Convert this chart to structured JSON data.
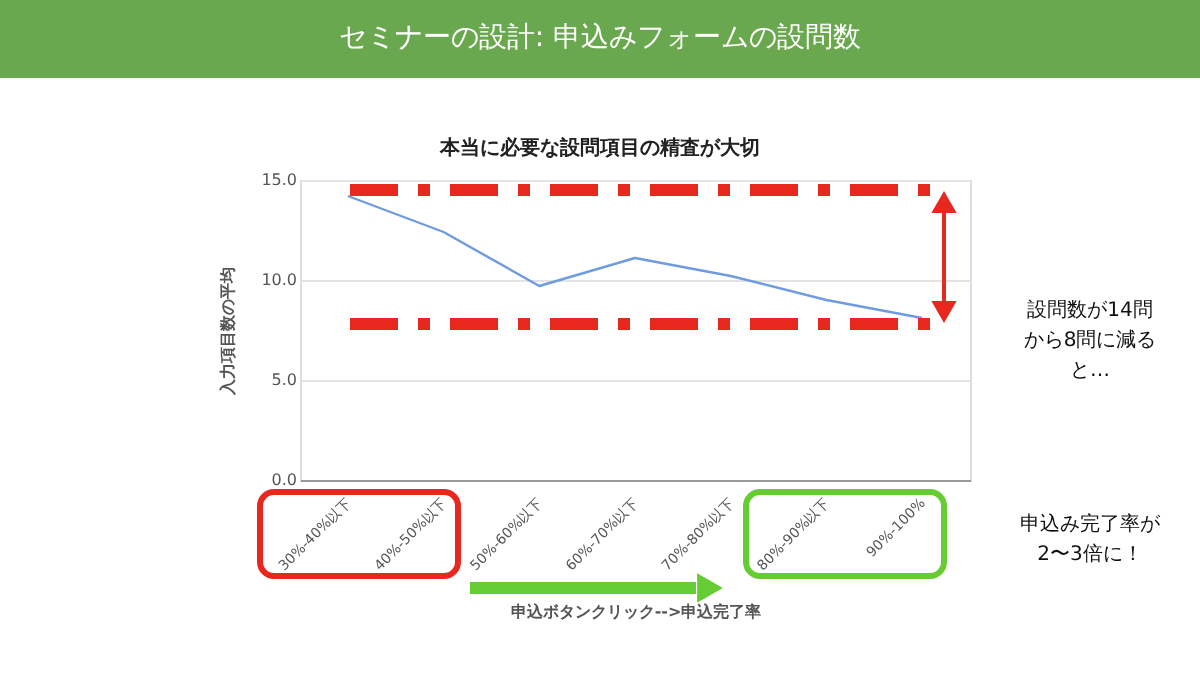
{
  "chart_data": {
    "type": "line",
    "title": "セミナーの設計: 申込みフォームの設問数",
    "subtitle": "本当に必要な設問項目の精査が大切",
    "xlabel": "申込ボタンクリック-->申込完了率",
    "ylabel": "入力項目数の平均",
    "categories": [
      "30%-40%以下",
      "40%-50%以下",
      "50%-60%以下",
      "60%-70%以下",
      "70%-80%以下",
      "80%-90%以下",
      "90%-100%"
    ],
    "series": [
      {
        "color": "#6f9be0",
        "values": [
          14.2,
          12.4,
          9.7,
          11.1,
          10.2,
          9.0,
          8.1
        ]
      }
    ],
    "ylim": [
      0,
      15
    ],
    "yticks": [
      {
        "value": 0,
        "label": "0.0"
      },
      {
        "value": 5,
        "label": "5.0"
      },
      {
        "value": 10,
        "label": "10.0"
      },
      {
        "value": 15,
        "label": "15.0"
      }
    ],
    "grid": "y",
    "marker": "none",
    "line_style": "solid",
    "ref_lines": [
      {
        "axis": "y",
        "value": 14.5,
        "color": "#e8281e",
        "line_style": "dashed"
      },
      {
        "axis": "y",
        "value": 7.8,
        "color": "#e8281e",
        "line_style": "dashed"
      }
    ],
    "annotations": [
      "設問数が14問から8問に減ると…",
      "申込み完了率が2〜3倍に！"
    ]
  }
}
